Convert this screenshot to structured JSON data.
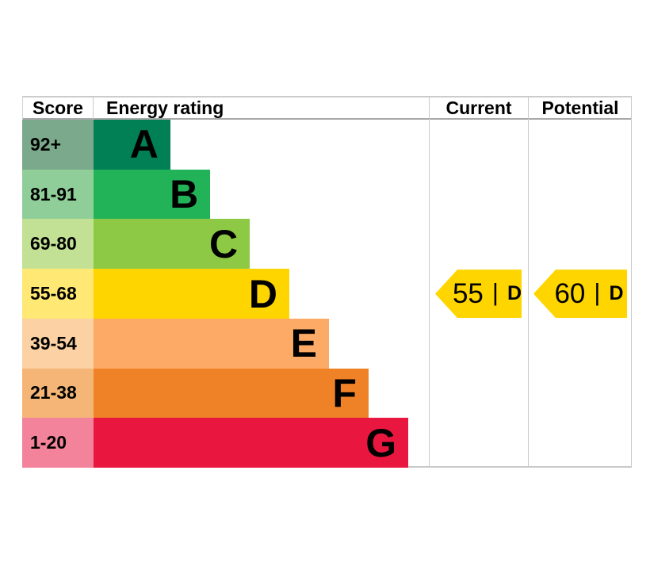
{
  "header": {
    "score": "Score",
    "energy_rating": "Energy rating",
    "current": "Current",
    "potential": "Potential"
  },
  "chart_data": {
    "type": "bar",
    "orientation": "horizontal",
    "categories": [
      "A",
      "B",
      "C",
      "D",
      "E",
      "F",
      "G"
    ],
    "bands": [
      {
        "grade": "A",
        "score_range": "92+",
        "bar_color": "#008054",
        "score_bg": "#7aa98c",
        "width_pct": 22.9
      },
      {
        "grade": "B",
        "score_range": "81-91",
        "bar_color": "#22b358",
        "score_bg": "#8fce98",
        "width_pct": 34.8
      },
      {
        "grade": "C",
        "score_range": "69-80",
        "bar_color": "#8dc944",
        "score_bg": "#c2e195",
        "width_pct": 46.6
      },
      {
        "grade": "D",
        "score_range": "55-68",
        "bar_color": "#ffd500",
        "score_bg": "#ffe873",
        "width_pct": 58.4
      },
      {
        "grade": "E",
        "score_range": "39-54",
        "bar_color": "#fcaa65",
        "score_bg": "#fcd1a3",
        "width_pct": 70.2
      },
      {
        "grade": "F",
        "score_range": "21-38",
        "bar_color": "#ef8227",
        "score_bg": "#f4b576",
        "width_pct": 82.0
      },
      {
        "grade": "G",
        "score_range": "1-20",
        "bar_color": "#e9173f",
        "score_bg": "#f2839a",
        "width_pct": 93.9
      }
    ],
    "markers": {
      "current": {
        "value": "55",
        "separator": "|",
        "grade": "D",
        "color": "#ffd500"
      },
      "potential": {
        "value": "60",
        "separator": "|",
        "grade": "D",
        "color": "#ffd500"
      }
    }
  }
}
